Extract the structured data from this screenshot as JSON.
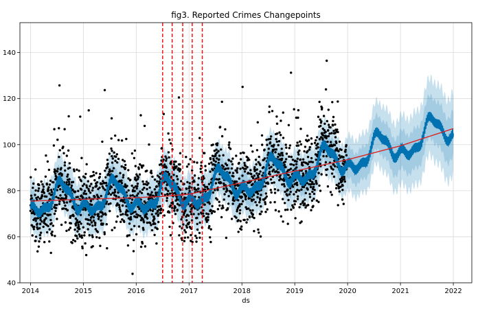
{
  "chart_data": {
    "type": "scatter",
    "title": "fig3. Reported Crimes Changepoints",
    "xlabel": "ds",
    "ylabel": "",
    "xlim": [
      2013.8,
      2022.35
    ],
    "ylim": [
      40,
      153
    ],
    "grid": true,
    "x_ticks": [
      2014,
      2015,
      2016,
      2017,
      2018,
      2019,
      2020,
      2021,
      2022
    ],
    "y_ticks": [
      40,
      60,
      80,
      100,
      120,
      140
    ],
    "trend": {
      "color": "#d62728",
      "points": [
        {
          "x": 2014.0,
          "y": 75.5
        },
        {
          "x": 2016.0,
          "y": 77.0
        },
        {
          "x": 2016.5,
          "y": 77.5
        },
        {
          "x": 2017.0,
          "y": 78.5
        },
        {
          "x": 2017.5,
          "y": 81.0
        },
        {
          "x": 2018.0,
          "y": 83.5
        },
        {
          "x": 2019.0,
          "y": 88.5
        },
        {
          "x": 2020.0,
          "y": 93.5
        },
        {
          "x": 2021.0,
          "y": 99.5
        },
        {
          "x": 2022.0,
          "y": 107.0
        }
      ]
    },
    "changepoints": {
      "color": "#ff0000",
      "x": [
        2016.5,
        2016.68,
        2016.88,
        2017.06,
        2017.25
      ]
    },
    "observed_range": [
      2014.0,
      2019.98
    ],
    "forecast_range": [
      2014.0,
      2022.0
    ],
    "colors": {
      "points": "#000000",
      "forecast_line": "#0072B2",
      "band": "#0072B2",
      "grid": "#d9d9d9"
    }
  }
}
